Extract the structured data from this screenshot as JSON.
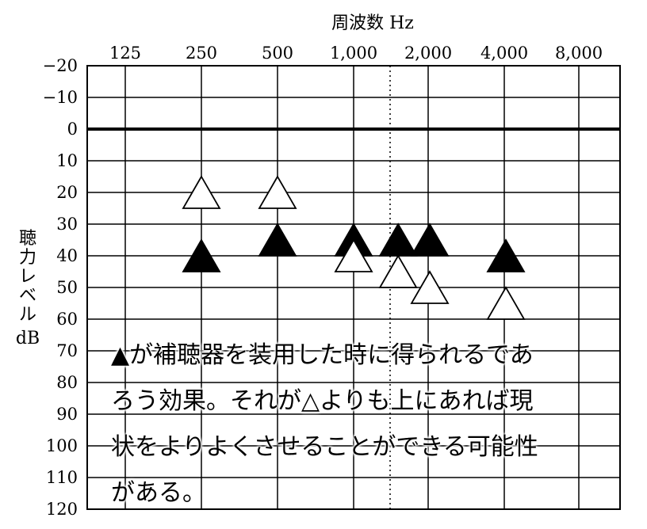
{
  "chart_data": {
    "type": "scatter",
    "xlabel": "周波数 Hz",
    "ylabel": "聴力レベル dB",
    "x_categories": [
      "125",
      "250",
      "500",
      "1,000",
      "",
      "2,000",
      "4,000",
      "8,000"
    ],
    "y_ticks": [
      "−20",
      "−10",
      "0",
      "10",
      "20",
      "30",
      "40",
      "50",
      "60",
      "70",
      "80",
      "90",
      "100",
      "110",
      "120"
    ],
    "ylim": [
      -20,
      120
    ],
    "y_inverted": true,
    "reference_line_db": 0,
    "grid": true,
    "series": [
      {
        "marker": "filled-triangle",
        "points": [
          {
            "hz": 250,
            "db": 40
          },
          {
            "hz": 500,
            "db": 35
          },
          {
            "hz": 1000,
            "db": 35
          },
          {
            "hz": 1500,
            "db": 35
          },
          {
            "hz": 2000,
            "db": 35
          },
          {
            "hz": 4000,
            "db": 40
          }
        ]
      },
      {
        "marker": "open-triangle",
        "points": [
          {
            "hz": 250,
            "db": 20
          },
          {
            "hz": 500,
            "db": 20
          },
          {
            "hz": 1000,
            "db": 40
          },
          {
            "hz": 1500,
            "db": 45
          },
          {
            "hz": 2000,
            "db": 50
          },
          {
            "hz": 4000,
            "db": 55
          }
        ]
      }
    ]
  },
  "annotation": {
    "lines": [
      "▲が補聴器を装用した時に得られるであ",
      "ろう効果。それが△よりも上にあれば現",
      "状をよりよくさせることができる可能性",
      "がある。"
    ]
  },
  "colors": {
    "grid": "#000000",
    "filled_marker": "#000000",
    "open_marker_fill": "#ffffff"
  }
}
